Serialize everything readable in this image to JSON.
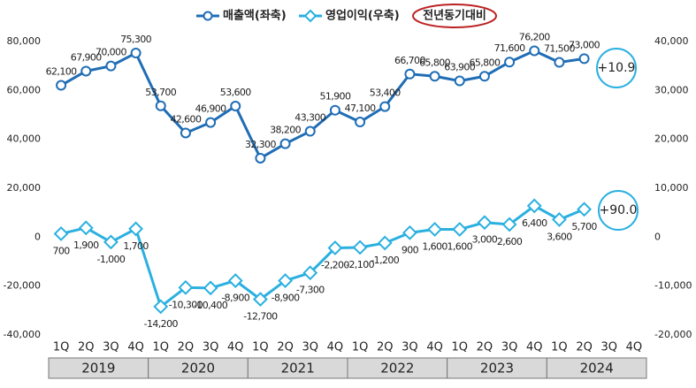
{
  "chart_data": {
    "type": "line",
    "categories": [
      "1Q",
      "2Q",
      "3Q",
      "4Q",
      "1Q",
      "2Q",
      "3Q",
      "4Q",
      "1Q",
      "2Q",
      "3Q",
      "4Q",
      "1Q",
      "2Q",
      "3Q",
      "4Q",
      "1Q",
      "2Q",
      "3Q",
      "4Q",
      "1Q",
      "2Q",
      "3Q",
      "4Q"
    ],
    "years": [
      "2019",
      "2020",
      "2021",
      "2022",
      "2023",
      "2024"
    ],
    "series": [
      {
        "name": "매출액(좌축)",
        "color": "#1f6db5",
        "marker": "circle",
        "values": [
          62100,
          67900,
          70000,
          75300,
          53700,
          42600,
          46900,
          53600,
          32300,
          38200,
          43300,
          51900,
          47100,
          53400,
          66700,
          65800,
          63900,
          65800,
          71600,
          76200,
          71500,
          73000,
          null,
          null
        ],
        "value_labels": [
          "62,100",
          "67,900",
          "70,000",
          "75,300",
          "53,700",
          "42,600",
          "46,900",
          "53,600",
          "32,300",
          "38,200",
          "43,300",
          "51,900",
          "47,100",
          "53,400",
          "66,700",
          "65,800",
          "63,900",
          "65,800",
          "71,600",
          "76,200",
          "71,500",
          "73,000",
          null,
          null
        ]
      },
      {
        "name": "영업이익(우축)",
        "color": "#2ab0e0",
        "marker": "diamond",
        "axis": "y2",
        "values": [
          700,
          1900,
          -1000,
          1700,
          -14200,
          -10300,
          -10400,
          -8900,
          -12700,
          -8900,
          -7300,
          -2200,
          -2100,
          -1200,
          900,
          1600,
          1600,
          3000,
          2600,
          6400,
          3600,
          5700,
          null,
          null
        ],
        "value_labels": [
          "700",
          "1,900",
          "-1,000",
          "1,700",
          "-14,200",
          "-10,300",
          "-10,400",
          "-8,900",
          "-12,700",
          "-8,900",
          "-7,300",
          "-2,200",
          "-2,100",
          "-1,200",
          "900",
          "1,600",
          "1,600",
          "3,000",
          "2,600",
          "6,400",
          "3,600",
          "5,700",
          null,
          null
        ]
      }
    ],
    "ylim": [
      -40000,
      80000
    ],
    "yticks": [
      {
        "value": -40000,
        "label": "-40,000"
      },
      {
        "value": -20000,
        "label": "-20,000"
      },
      0,
      {
        "value": 20000,
        "label": "20,000"
      },
      {
        "value": 40000,
        "label": "40,000"
      },
      {
        "value": 60000,
        "label": "60,000"
      },
      {
        "value": 80000,
        "label": "80,000"
      }
    ],
    "y2lim": [
      -20000,
      40000
    ],
    "y2ticks": [
      {
        "value": -20000,
        "label": "-20,000"
      },
      {
        "value": -10000,
        "label": "-10,000"
      },
      0,
      {
        "value": 10000,
        "label": "10,000"
      },
      {
        "value": 20000,
        "label": "20,000"
      },
      {
        "value": 30000,
        "label": "30,000"
      },
      {
        "value": 40000,
        "label": "40,000"
      }
    ],
    "comparison_label": "전년동기대비",
    "annotations": [
      "+10.9",
      "+90.0"
    ]
  }
}
